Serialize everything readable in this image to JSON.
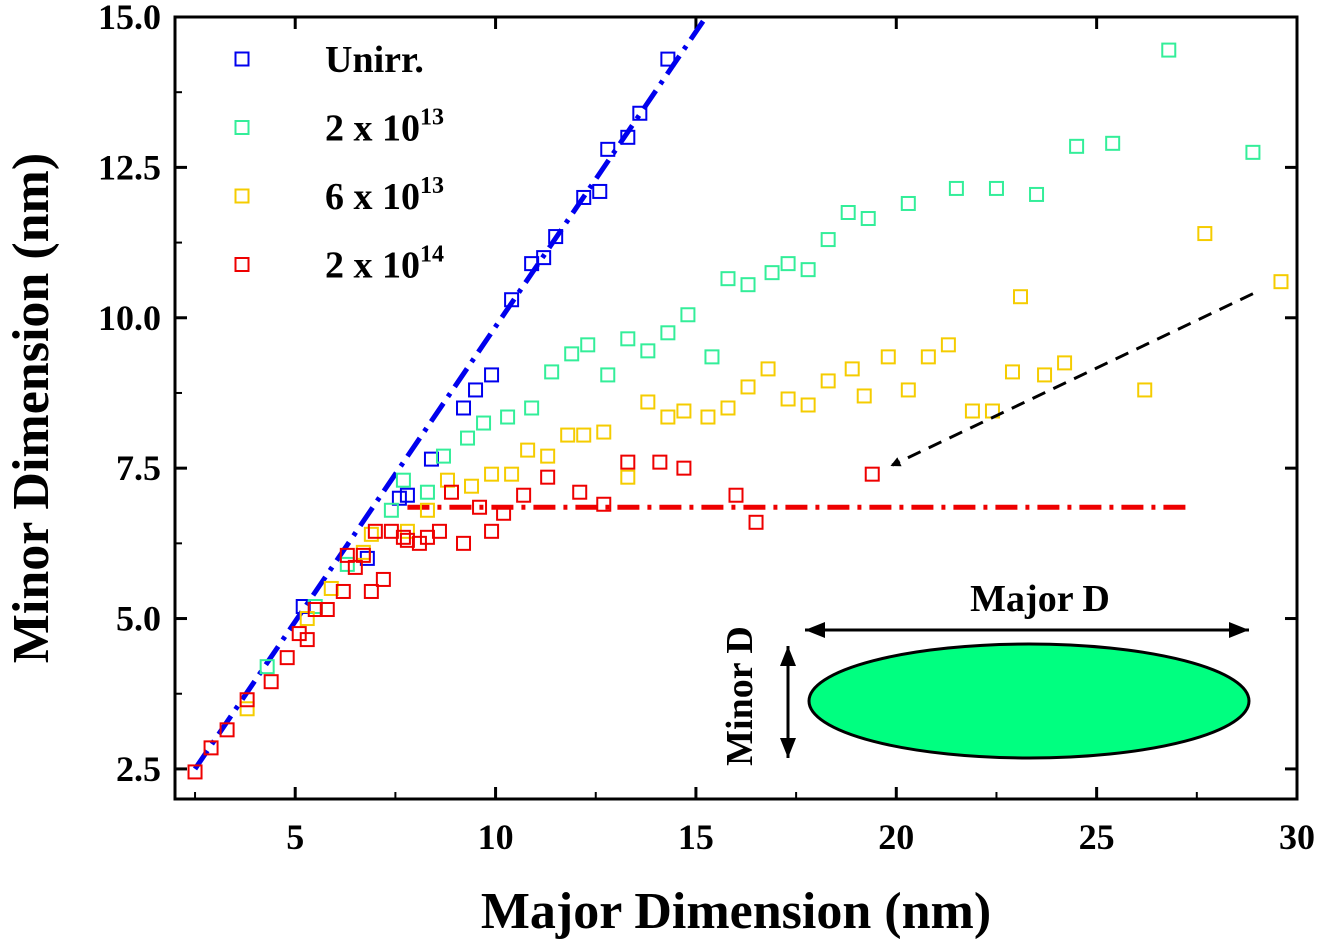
{
  "chart_data": {
    "type": "scatter",
    "xlabel": "Major Dimension (nm)",
    "ylabel": "Minor Dimension (nm)",
    "xlim": [
      2,
      30
    ],
    "ylim": [
      2,
      15
    ],
    "x_ticks": [
      "5",
      "10",
      "15",
      "20",
      "25",
      "30"
    ],
    "y_ticks": [
      "2.5",
      "5.0",
      "7.5",
      "10.0",
      "12.5",
      "15.0"
    ],
    "legend_position": "top-left",
    "series": [
      {
        "name": "Unirr.",
        "color": "#0000ee",
        "marker": "open-square",
        "points": [
          [
            5.2,
            5.2
          ],
          [
            6.8,
            6.0
          ],
          [
            7.6,
            7.0
          ],
          [
            7.8,
            7.05
          ],
          [
            8.4,
            7.65
          ],
          [
            9.2,
            8.5
          ],
          [
            9.5,
            8.8
          ],
          [
            9.9,
            9.05
          ],
          [
            10.4,
            10.3
          ],
          [
            10.9,
            10.9
          ],
          [
            11.2,
            11.0
          ],
          [
            11.5,
            11.35
          ],
          [
            12.2,
            12.0
          ],
          [
            12.6,
            12.1
          ],
          [
            12.8,
            12.8
          ],
          [
            13.3,
            13.0
          ],
          [
            13.6,
            13.4
          ],
          [
            14.3,
            14.3
          ]
        ]
      },
      {
        "name": "2 x 10^13",
        "color": "#33ee99",
        "marker": "open-square",
        "points": [
          [
            4.3,
            4.2
          ],
          [
            5.5,
            5.2
          ],
          [
            6.3,
            5.9
          ],
          [
            7.4,
            6.8
          ],
          [
            7.7,
            7.3
          ],
          [
            8.3,
            7.1
          ],
          [
            8.7,
            7.7
          ],
          [
            9.3,
            8.0
          ],
          [
            9.7,
            8.25
          ],
          [
            10.3,
            8.35
          ],
          [
            10.9,
            8.5
          ],
          [
            11.4,
            9.1
          ],
          [
            11.9,
            9.4
          ],
          [
            12.3,
            9.55
          ],
          [
            12.8,
            9.05
          ],
          [
            13.3,
            9.65
          ],
          [
            13.8,
            9.45
          ],
          [
            14.3,
            9.75
          ],
          [
            14.8,
            10.05
          ],
          [
            15.4,
            9.35
          ],
          [
            15.8,
            10.65
          ],
          [
            16.3,
            10.55
          ],
          [
            16.9,
            10.75
          ],
          [
            17.3,
            10.9
          ],
          [
            17.8,
            10.8
          ],
          [
            18.3,
            11.3
          ],
          [
            18.8,
            11.75
          ],
          [
            19.3,
            11.65
          ],
          [
            20.3,
            11.9
          ],
          [
            21.5,
            12.15
          ],
          [
            22.5,
            12.15
          ],
          [
            23.5,
            12.05
          ],
          [
            24.5,
            12.85
          ],
          [
            25.4,
            12.9
          ],
          [
            26.8,
            14.45
          ],
          [
            28.9,
            12.75
          ]
        ]
      },
      {
        "name": "6 x 10^13",
        "color": "#f5cc00",
        "marker": "open-square",
        "points": [
          [
            3.8,
            3.5
          ],
          [
            5.3,
            5.0
          ],
          [
            5.9,
            5.5
          ],
          [
            6.7,
            6.1
          ],
          [
            6.9,
            6.4
          ],
          [
            7.8,
            6.45
          ],
          [
            8.3,
            6.8
          ],
          [
            8.8,
            7.3
          ],
          [
            9.4,
            7.2
          ],
          [
            9.9,
            7.4
          ],
          [
            10.4,
            7.4
          ],
          [
            10.8,
            7.8
          ],
          [
            11.3,
            7.7
          ],
          [
            11.8,
            8.05
          ],
          [
            12.2,
            8.05
          ],
          [
            12.7,
            8.1
          ],
          [
            13.3,
            7.35
          ],
          [
            13.8,
            8.6
          ],
          [
            14.3,
            8.35
          ],
          [
            14.7,
            8.45
          ],
          [
            15.3,
            8.35
          ],
          [
            15.8,
            8.5
          ],
          [
            16.3,
            8.85
          ],
          [
            16.8,
            9.15
          ],
          [
            17.3,
            8.65
          ],
          [
            17.8,
            8.55
          ],
          [
            18.3,
            8.95
          ],
          [
            18.9,
            9.15
          ],
          [
            19.2,
            8.7
          ],
          [
            19.8,
            9.35
          ],
          [
            20.3,
            8.8
          ],
          [
            20.8,
            9.35
          ],
          [
            21.3,
            9.55
          ],
          [
            21.9,
            8.45
          ],
          [
            22.4,
            8.45
          ],
          [
            23.1,
            10.35
          ],
          [
            22.9,
            9.1
          ],
          [
            23.7,
            9.05
          ],
          [
            24.2,
            9.25
          ],
          [
            26.2,
            8.8
          ],
          [
            27.7,
            11.4
          ],
          [
            29.6,
            10.6
          ]
        ]
      },
      {
        "name": "2 x 10^14",
        "color": "#ee0000",
        "marker": "open-square",
        "points": [
          [
            2.5,
            2.45
          ],
          [
            2.9,
            2.85
          ],
          [
            3.3,
            3.15
          ],
          [
            3.8,
            3.65
          ],
          [
            4.4,
            3.95
          ],
          [
            4.8,
            4.35
          ],
          [
            5.1,
            4.75
          ],
          [
            5.3,
            4.65
          ],
          [
            5.5,
            5.15
          ],
          [
            5.8,
            5.15
          ],
          [
            6.2,
            5.45
          ],
          [
            6.3,
            6.05
          ],
          [
            6.5,
            5.85
          ],
          [
            6.7,
            6.05
          ],
          [
            6.9,
            5.45
          ],
          [
            7.0,
            6.45
          ],
          [
            7.2,
            5.65
          ],
          [
            7.4,
            6.45
          ],
          [
            7.7,
            6.35
          ],
          [
            7.8,
            6.3
          ],
          [
            8.1,
            6.25
          ],
          [
            8.3,
            6.35
          ],
          [
            8.6,
            6.45
          ],
          [
            8.9,
            7.1
          ],
          [
            9.2,
            6.25
          ],
          [
            9.6,
            6.85
          ],
          [
            9.9,
            6.45
          ],
          [
            10.2,
            6.75
          ],
          [
            10.7,
            7.05
          ],
          [
            11.3,
            7.35
          ],
          [
            12.1,
            7.1
          ],
          [
            12.7,
            6.9
          ],
          [
            13.3,
            7.6
          ],
          [
            14.1,
            7.6
          ],
          [
            14.7,
            7.5
          ],
          [
            16.0,
            7.05
          ],
          [
            16.5,
            6.6
          ],
          [
            19.4,
            7.4
          ]
        ]
      }
    ],
    "fit_lines": [
      {
        "name": "Unirr. linear fit",
        "color": "#0000ee",
        "style": "dash-dot",
        "x": [
          2.5,
          15.25
        ],
        "y": [
          2.5,
          15.0
        ]
      },
      {
        "name": "2 x 10^14 saturation",
        "color": "#ee0000",
        "style": "dash-dot",
        "x": [
          7.8,
          27.3
        ],
        "y": [
          6.85,
          6.85
        ]
      }
    ],
    "annotations": [
      {
        "type": "arrow",
        "style": "dashed",
        "color": "#000000",
        "from": [
          28.9,
          10.4
        ],
        "to": [
          19.9,
          7.55
        ]
      }
    ],
    "legend": [
      {
        "label": "Unirr.",
        "base": "Unirr.",
        "exp": ""
      },
      {
        "label": "2 x 10^13",
        "base": "2 x 10",
        "exp": "13"
      },
      {
        "label": "6 x 10^13",
        "base": "6 x 10",
        "exp": "13"
      },
      {
        "label": "2 x 10^14",
        "base": "2 x 10",
        "exp": "14"
      }
    ],
    "inset": {
      "major_label": "Major D",
      "minor_label": "Minor D",
      "ellipse_fill": "#00ff80"
    }
  }
}
